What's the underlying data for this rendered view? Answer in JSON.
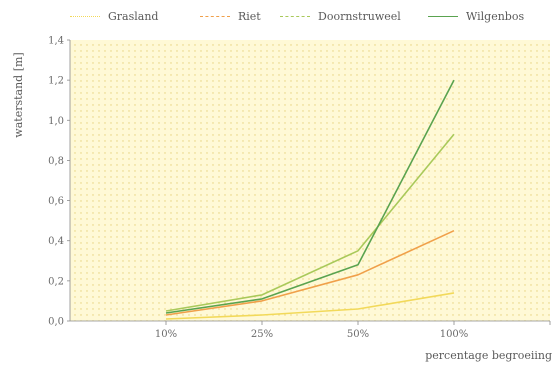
{
  "chart_data": {
    "type": "line",
    "title": "",
    "xlabel": "percentage begroeiing",
    "ylabel": "waterstand  [m]",
    "categories": [
      "10%",
      "25%",
      "50%",
      "100%"
    ],
    "ylim": [
      0.0,
      1.4
    ],
    "yticks": [
      "0,0",
      "0,2",
      "0,4",
      "0,6",
      "0,8",
      "1,0",
      "1,2",
      "1,4"
    ],
    "grid": "dotted",
    "legend": "top",
    "series": [
      {
        "name": "Grasland",
        "values": [
          0.01,
          0.03,
          0.06,
          0.14
        ],
        "color": "#f2d95a"
      },
      {
        "name": "Riet",
        "values": [
          0.03,
          0.1,
          0.23,
          0.45
        ],
        "color": "#f0a04a"
      },
      {
        "name": "Doornstruweel",
        "values": [
          0.05,
          0.13,
          0.35,
          0.93
        ],
        "color": "#a9c95a"
      },
      {
        "name": "Wilgenbos",
        "values": [
          0.04,
          0.11,
          0.28,
          1.2
        ],
        "color": "#5aa34f"
      }
    ]
  }
}
